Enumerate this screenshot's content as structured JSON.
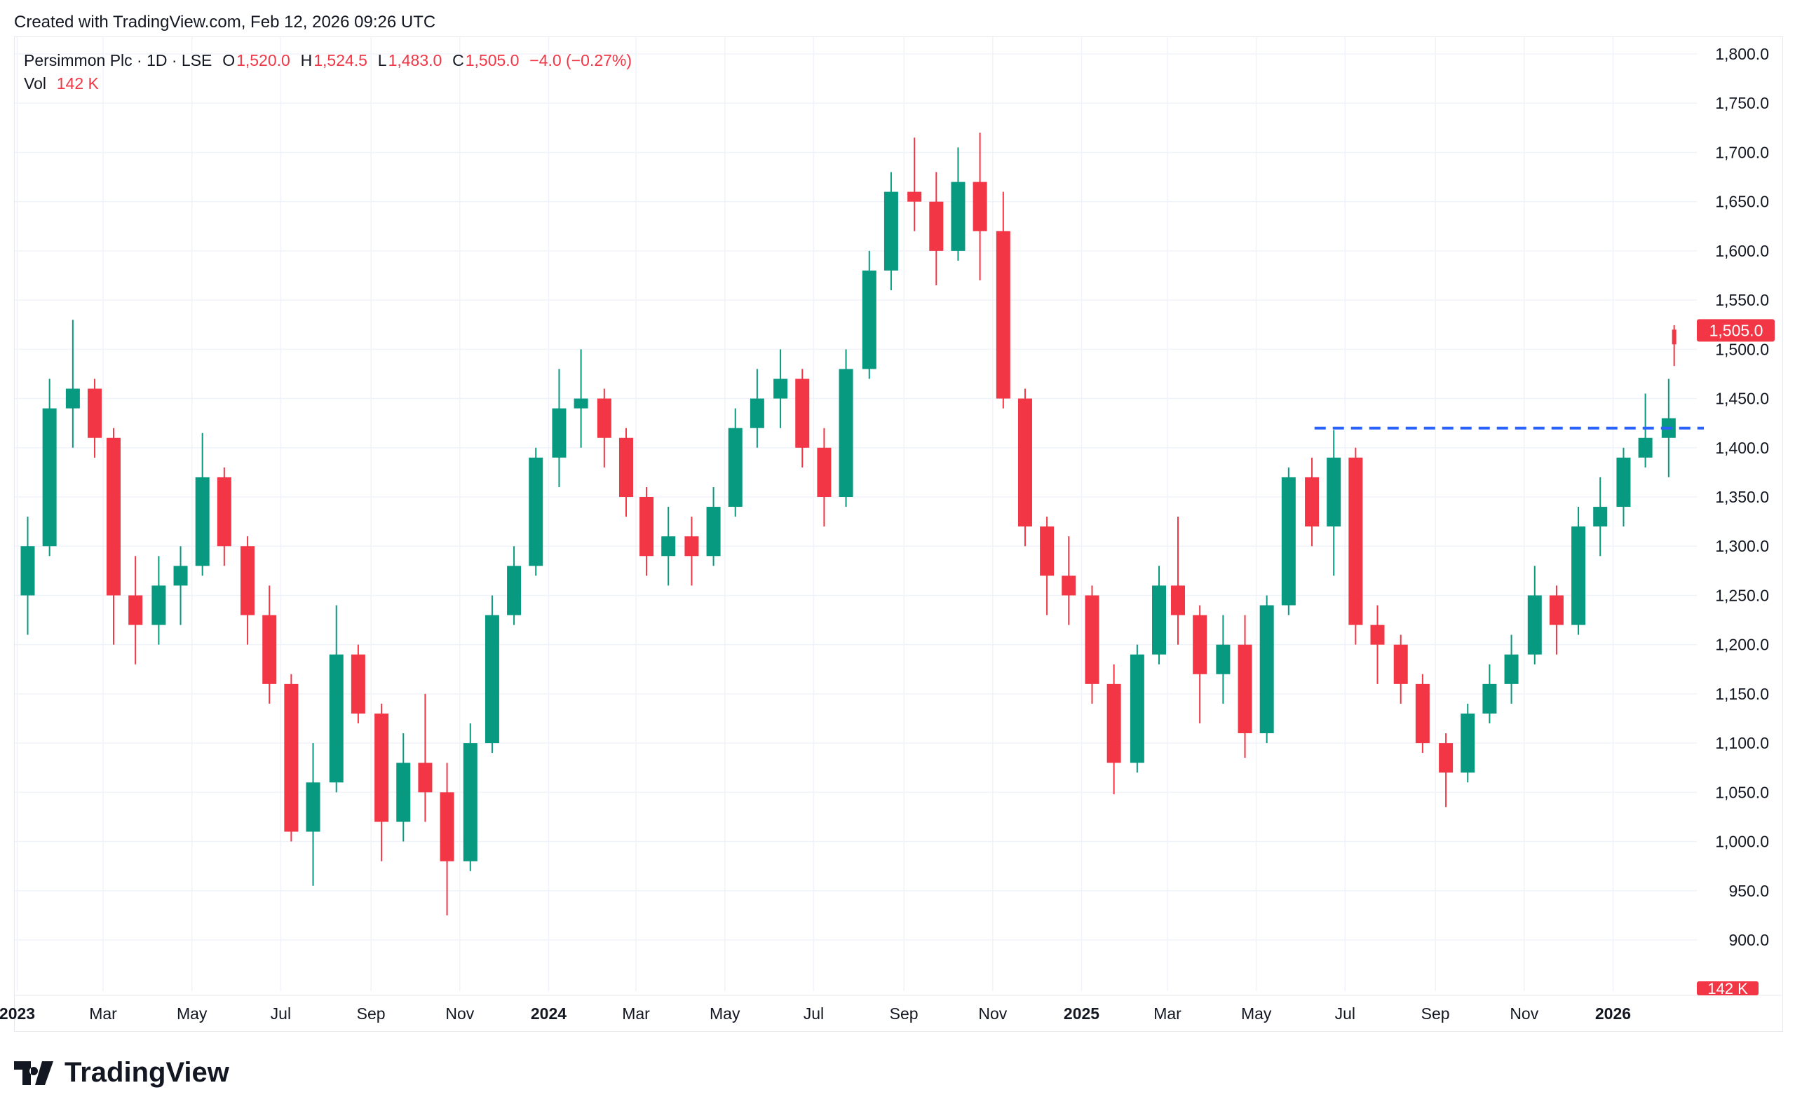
{
  "created_note": "Created with TradingView.com, Feb 12, 2026 09:26 UTC",
  "legend": {
    "symbol": "Persimmon Plc · 1D · LSE",
    "open_label": "O",
    "open": "1,520.0",
    "high_label": "H",
    "high": "1,524.5",
    "low_label": "L",
    "low": "1,483.0",
    "close_label": "C",
    "close": "1,505.0",
    "change": "−4.0 (−0.27%)",
    "vol_label": "Vol",
    "vol": "142 K"
  },
  "logo_text": "TradingView",
  "colors": {
    "up": "#089981",
    "down": "#f23645",
    "hline": "#2962ff",
    "grid": "#f0f3fa"
  },
  "chart_data": {
    "type": "candlestick",
    "title": "Persimmon Plc · 1D · LSE",
    "ylim": [
      900,
      1800
    ],
    "y_ticks": [
      "1,800.0",
      "1,750.0",
      "1,700.0",
      "1,650.0",
      "1,600.0",
      "1,550.0",
      "1,500.0",
      "1,450.0",
      "1,400.0",
      "1,350.0",
      "1,300.0",
      "1,250.0",
      "1,200.0",
      "1,150.0",
      "1,100.0",
      "1,050.0",
      "1,000.0",
      "950.0",
      "900.0"
    ],
    "x_ticks": [
      {
        "d": "2023-01-01",
        "label": "2023",
        "bold": true
      },
      {
        "d": "2023-03-01",
        "label": "Mar"
      },
      {
        "d": "2023-05-01",
        "label": "May"
      },
      {
        "d": "2023-07-01",
        "label": "Jul"
      },
      {
        "d": "2023-09-01",
        "label": "Sep"
      },
      {
        "d": "2023-11-01",
        "label": "Nov"
      },
      {
        "d": "2024-01-01",
        "label": "2024",
        "bold": true
      },
      {
        "d": "2024-03-01",
        "label": "Mar"
      },
      {
        "d": "2024-05-01",
        "label": "May"
      },
      {
        "d": "2024-07-01",
        "label": "Jul"
      },
      {
        "d": "2024-09-01",
        "label": "Sep"
      },
      {
        "d": "2024-11-01",
        "label": "Nov"
      },
      {
        "d": "2025-01-01",
        "label": "2025",
        "bold": true
      },
      {
        "d": "2025-03-01",
        "label": "Mar"
      },
      {
        "d": "2025-05-01",
        "label": "May"
      },
      {
        "d": "2025-07-01",
        "label": "Jul"
      },
      {
        "d": "2025-09-01",
        "label": "Sep"
      },
      {
        "d": "2025-11-01",
        "label": "Nov"
      },
      {
        "d": "2026-01-01",
        "label": "2026",
        "bold": true
      }
    ],
    "last_price_label": "1,505.0",
    "last_volume_label": "142 K",
    "horizontal_line": {
      "price": 1420,
      "from": "2025-06-10",
      "style": "dashed"
    },
    "candles": [
      [
        "2023-01-01",
        1250,
        1330,
        1210,
        1300
      ],
      [
        "2023-01-16",
        1300,
        1470,
        1290,
        1440
      ],
      [
        "2023-02-01",
        1440,
        1530,
        1400,
        1460
      ],
      [
        "2023-02-16",
        1460,
        1470,
        1390,
        1410
      ],
      [
        "2023-03-01",
        1410,
        1420,
        1200,
        1250
      ],
      [
        "2023-03-16",
        1250,
        1290,
        1180,
        1220
      ],
      [
        "2023-04-01",
        1220,
        1290,
        1200,
        1260
      ],
      [
        "2023-04-16",
        1260,
        1300,
        1220,
        1280
      ],
      [
        "2023-05-01",
        1280,
        1415,
        1270,
        1370
      ],
      [
        "2023-05-16",
        1370,
        1380,
        1280,
        1300
      ],
      [
        "2023-06-01",
        1300,
        1310,
        1200,
        1230
      ],
      [
        "2023-06-16",
        1230,
        1260,
        1140,
        1160
      ],
      [
        "2023-07-01",
        1160,
        1170,
        1000,
        1010
      ],
      [
        "2023-07-16",
        1010,
        1100,
        955,
        1060
      ],
      [
        "2023-08-01",
        1060,
        1240,
        1050,
        1190
      ],
      [
        "2023-08-16",
        1190,
        1200,
        1120,
        1130
      ],
      [
        "2023-09-01",
        1130,
        1140,
        980,
        1020
      ],
      [
        "2023-09-16",
        1020,
        1110,
        1000,
        1080
      ],
      [
        "2023-10-01",
        1080,
        1150,
        1020,
        1050
      ],
      [
        "2023-10-16",
        1050,
        1080,
        925,
        980
      ],
      [
        "2023-11-01",
        980,
        1120,
        970,
        1100
      ],
      [
        "2023-11-16",
        1100,
        1250,
        1090,
        1230
      ],
      [
        "2023-12-01",
        1230,
        1300,
        1220,
        1280
      ],
      [
        "2023-12-16",
        1280,
        1400,
        1270,
        1390
      ],
      [
        "2024-01-01",
        1390,
        1480,
        1360,
        1440
      ],
      [
        "2024-01-16",
        1440,
        1500,
        1400,
        1450
      ],
      [
        "2024-02-01",
        1450,
        1460,
        1380,
        1410
      ],
      [
        "2024-02-16",
        1410,
        1420,
        1330,
        1350
      ],
      [
        "2024-03-01",
        1350,
        1360,
        1270,
        1290
      ],
      [
        "2024-03-16",
        1290,
        1340,
        1260,
        1310
      ],
      [
        "2024-04-01",
        1310,
        1330,
        1260,
        1290
      ],
      [
        "2024-04-16",
        1290,
        1360,
        1280,
        1340
      ],
      [
        "2024-05-01",
        1340,
        1440,
        1330,
        1420
      ],
      [
        "2024-05-16",
        1420,
        1480,
        1400,
        1450
      ],
      [
        "2024-06-01",
        1450,
        1500,
        1420,
        1470
      ],
      [
        "2024-06-16",
        1470,
        1480,
        1380,
        1400
      ],
      [
        "2024-07-01",
        1400,
        1420,
        1320,
        1350
      ],
      [
        "2024-07-16",
        1350,
        1500,
        1340,
        1480
      ],
      [
        "2024-08-01",
        1480,
        1600,
        1470,
        1580
      ],
      [
        "2024-08-16",
        1580,
        1680,
        1560,
        1660
      ],
      [
        "2024-09-01",
        1660,
        1715,
        1620,
        1650
      ],
      [
        "2024-09-16",
        1650,
        1680,
        1565,
        1600
      ],
      [
        "2024-10-01",
        1600,
        1705,
        1590,
        1670
      ],
      [
        "2024-10-16",
        1670,
        1720,
        1570,
        1620
      ],
      [
        "2024-11-01",
        1620,
        1660,
        1440,
        1450
      ],
      [
        "2024-11-16",
        1450,
        1460,
        1300,
        1320
      ],
      [
        "2024-12-01",
        1320,
        1330,
        1230,
        1270
      ],
      [
        "2024-12-16",
        1270,
        1310,
        1220,
        1250
      ],
      [
        "2025-01-01",
        1250,
        1260,
        1140,
        1160
      ],
      [
        "2025-01-16",
        1160,
        1180,
        1048,
        1080
      ],
      [
        "2025-02-01",
        1080,
        1200,
        1070,
        1190
      ],
      [
        "2025-02-16",
        1190,
        1280,
        1180,
        1260
      ],
      [
        "2025-03-01",
        1260,
        1330,
        1200,
        1230
      ],
      [
        "2025-03-16",
        1230,
        1240,
        1120,
        1170
      ],
      [
        "2025-04-01",
        1170,
        1230,
        1140,
        1200
      ],
      [
        "2025-04-16",
        1200,
        1230,
        1085,
        1110
      ],
      [
        "2025-05-01",
        1110,
        1250,
        1100,
        1240
      ],
      [
        "2025-05-16",
        1240,
        1380,
        1230,
        1370
      ],
      [
        "2025-06-01",
        1370,
        1390,
        1300,
        1320
      ],
      [
        "2025-06-16",
        1320,
        1418,
        1270,
        1390
      ],
      [
        "2025-07-01",
        1390,
        1400,
        1200,
        1220
      ],
      [
        "2025-07-16",
        1220,
        1240,
        1160,
        1200
      ],
      [
        "2025-08-01",
        1200,
        1210,
        1140,
        1160
      ],
      [
        "2025-08-16",
        1160,
        1170,
        1090,
        1100
      ],
      [
        "2025-09-01",
        1100,
        1110,
        1035,
        1070
      ],
      [
        "2025-09-16",
        1070,
        1140,
        1060,
        1130
      ],
      [
        "2025-10-01",
        1130,
        1180,
        1120,
        1160
      ],
      [
        "2025-10-16",
        1160,
        1210,
        1140,
        1190
      ],
      [
        "2025-11-01",
        1190,
        1280,
        1180,
        1250
      ],
      [
        "2025-11-16",
        1250,
        1260,
        1190,
        1220
      ],
      [
        "2025-12-01",
        1220,
        1340,
        1210,
        1320
      ],
      [
        "2025-12-16",
        1320,
        1370,
        1290,
        1340
      ],
      [
        "2026-01-01",
        1340,
        1400,
        1320,
        1390
      ],
      [
        "2026-01-16",
        1390,
        1455,
        1380,
        1410
      ],
      [
        "2026-02-01",
        1410,
        1470,
        1370,
        1430
      ],
      [
        "2026-02-12",
        1520,
        1524.5,
        1483,
        1505
      ]
    ]
  }
}
